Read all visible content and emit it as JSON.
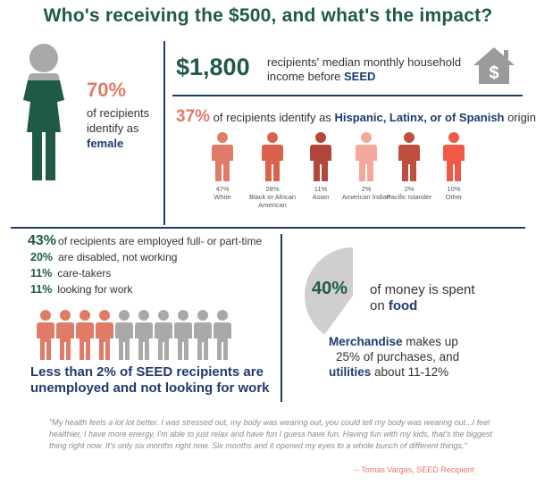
{
  "title": "Who's receiving the $500, and what's the impact?",
  "female": {
    "percent": "70%",
    "text_before": "of recipients identify as",
    "text_bold": "female"
  },
  "income": {
    "value": "$1,800",
    "text_before": "recipients' median monthly household income before",
    "text_bold": "SEED"
  },
  "hispanic": {
    "percent": "37%",
    "text_before": "of recipients  identify as",
    "text_bold": "Hispanic, Latinx, or of Spanish",
    "text_after": "origin"
  },
  "races": [
    {
      "pct": "47%",
      "label": "White",
      "color": "#e07b67"
    },
    {
      "pct": "28%",
      "label": "Black or African American",
      "color": "#d9624c"
    },
    {
      "pct": "11%",
      "label": "Asian",
      "color": "#b3483a"
    },
    {
      "pct": "2%",
      "label": "American Indian",
      "color": "#f3a99a"
    },
    {
      "pct": "2%",
      "label": "Pacific Islander",
      "color": "#c0503e"
    },
    {
      "pct": "10%",
      "label": "Other",
      "color": "#ee5a45"
    }
  ],
  "employment": {
    "rows": [
      {
        "num": "43%",
        "text": "of recipients are employed full- or part-time"
      },
      {
        "num": "20%",
        "text": "are disabled, not working"
      },
      {
        "num": "11%",
        "text": "care-takers"
      },
      {
        "num": "11%",
        "text": "looking for work"
      }
    ],
    "highlighted_people": 4,
    "total_people": 10
  },
  "unemployed": {
    "line1": "Less than 2% of SEED recipients are",
    "line2": "unemployed and not looking for work"
  },
  "food": {
    "percent": "40%",
    "text_line1": "of money is spent",
    "text_before": "on",
    "text_bold": "food",
    "pie_fraction": 0.4
  },
  "merchandise": {
    "bold1": "Merchandise",
    "text1": "makes up",
    "text2": "25% of purchases, and",
    "bold2": "utilities",
    "text3": "about 11-12%"
  },
  "quote": {
    "text": "\"My health feels a lot lot better. I was stressed out, my body was wearing out, you could tell my body was wearing out...I feel healthier, I have more energy, I'm able to just relax and have fun I guess have fun. Having fun with my kids, that's the biggest thing right now.  It's only six months right now. Six months and it opened my eyes to a whole bunch of different things.\"",
    "attribution": "-- Tomas Vargas, SEED Recipient"
  },
  "colors": {
    "green": "#1f5a45",
    "salmon": "#e07b67",
    "navy": "#1f3a6e",
    "gray": "#a9a9a9"
  },
  "icons": {
    "woman": "woman-icon",
    "house": "house-dollar-icon",
    "person": "person-icon"
  }
}
